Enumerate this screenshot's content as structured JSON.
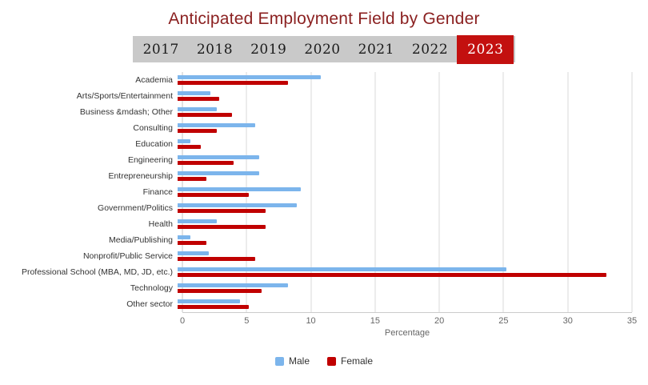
{
  "title": "Anticipated Employment Field by Gender",
  "years": {
    "items": [
      "2017",
      "2018",
      "2019",
      "2020",
      "2021",
      "2022",
      "2023"
    ],
    "active": "2023"
  },
  "chart_data": {
    "type": "bar",
    "orientation": "horizontal",
    "title": "Anticipated Employment Field by Gender",
    "categories": [
      "Academia",
      "Arts/Sports/Entertainment",
      "Business &mdash; Other",
      "Consulting",
      "Education",
      "Engineering",
      "Entrepreneurship",
      "Finance",
      "Government/Politics",
      "Health",
      "Media/Publishing",
      "Nonprofit/Public Service",
      "Professional School (MBA, MD, JD, etc.)",
      "Technology",
      "Other sector"
    ],
    "series": [
      {
        "name": "Male",
        "color": "#7cb5ec",
        "values": [
          11,
          2.5,
          3,
          6,
          1,
          6.3,
          6.3,
          9.5,
          9.2,
          3,
          1,
          2.4,
          25.3,
          8.5,
          4.8
        ]
      },
      {
        "name": "Female",
        "color": "#c00000",
        "values": [
          8.5,
          3.2,
          4.2,
          3,
          1.8,
          4.3,
          2.2,
          5.5,
          6.8,
          6.8,
          2.2,
          6,
          33,
          6.5,
          5.5
        ]
      }
    ],
    "xlabel": "Percentage",
    "xlim": [
      0,
      35
    ],
    "xticks": [
      0,
      5,
      10,
      15,
      20,
      25,
      30,
      35
    ],
    "grid": true,
    "legend_position": "bottom"
  },
  "colors": {
    "male_blue": "#7cb5ec",
    "female_red": "#c00000",
    "active_year_bg": "#c3100f",
    "year_strip_bg": "#c9c9c9",
    "title_color": "#8b2121"
  }
}
